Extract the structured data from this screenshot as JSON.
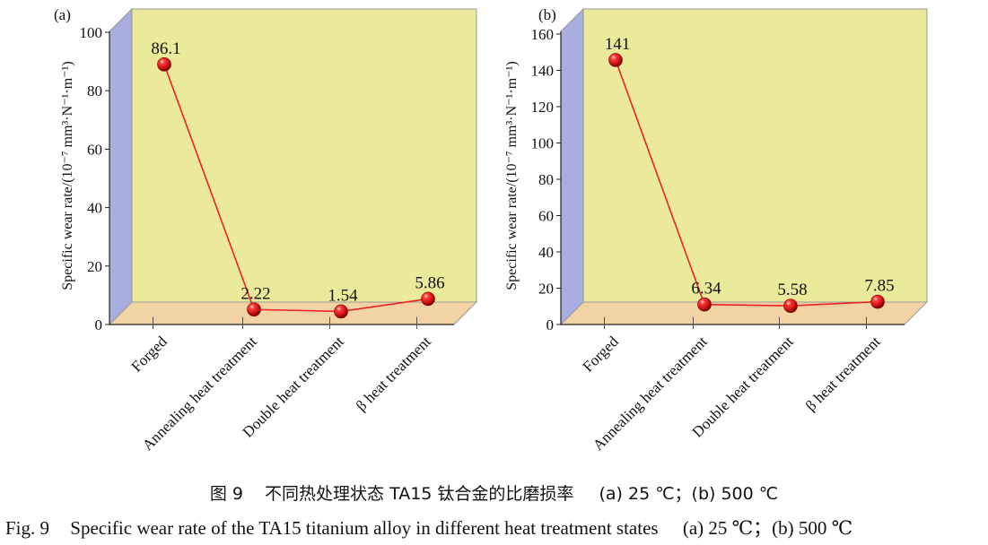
{
  "chart_data": [
    {
      "type": "line",
      "panel_label": "(a)",
      "ylabel": "Specific wear rate/(10⁻⁷ mm³·N⁻¹·m⁻¹)",
      "categories": [
        "Forged",
        "Annealing heat treatment",
        "Double heat treatment",
        "β heat treatment"
      ],
      "values": [
        86.1,
        2.22,
        1.54,
        5.86
      ],
      "data_labels": [
        "86.1",
        "2.22",
        "1.54",
        "5.86"
      ],
      "ylim": [
        0,
        100
      ],
      "yticks": [
        0,
        20,
        40,
        60,
        80,
        100
      ],
      "colors": {
        "line": "#ee2222",
        "marker": "#cc1111",
        "back_wall": "#eaea9a",
        "side_wall": "#a9aee0",
        "floor": "#f2d3a3"
      }
    },
    {
      "type": "line",
      "panel_label": "(b)",
      "ylabel": "Specific wear rate/(10⁻⁷ mm³·N⁻¹·m⁻¹)",
      "categories": [
        "Forged",
        "Annealing heat treatment",
        "Double heat treatment",
        "β heat treatment"
      ],
      "values": [
        141,
        6.34,
        5.58,
        7.85
      ],
      "data_labels": [
        "141",
        "6.34",
        "5.58",
        "7.85"
      ],
      "ylim": [
        0,
        160
      ],
      "yticks": [
        0,
        20,
        40,
        60,
        80,
        100,
        120,
        140,
        160
      ],
      "colors": {
        "line": "#ee2222",
        "marker": "#cc1111",
        "back_wall": "#eaea9a",
        "side_wall": "#a9aee0",
        "floor": "#f2d3a3"
      }
    }
  ],
  "caption": {
    "cn_label": "图 9",
    "cn_title": "不同热处理状态 TA15 钛合金的比磨损率",
    "cn_conditions": "(a) 25 ℃；(b) 500 ℃",
    "en_label": "Fig. 9",
    "en_title": "Specific wear rate of the TA15 titanium alloy in different heat treatment states",
    "en_conditions": "(a) 25 ℃；(b) 500 ℃"
  }
}
